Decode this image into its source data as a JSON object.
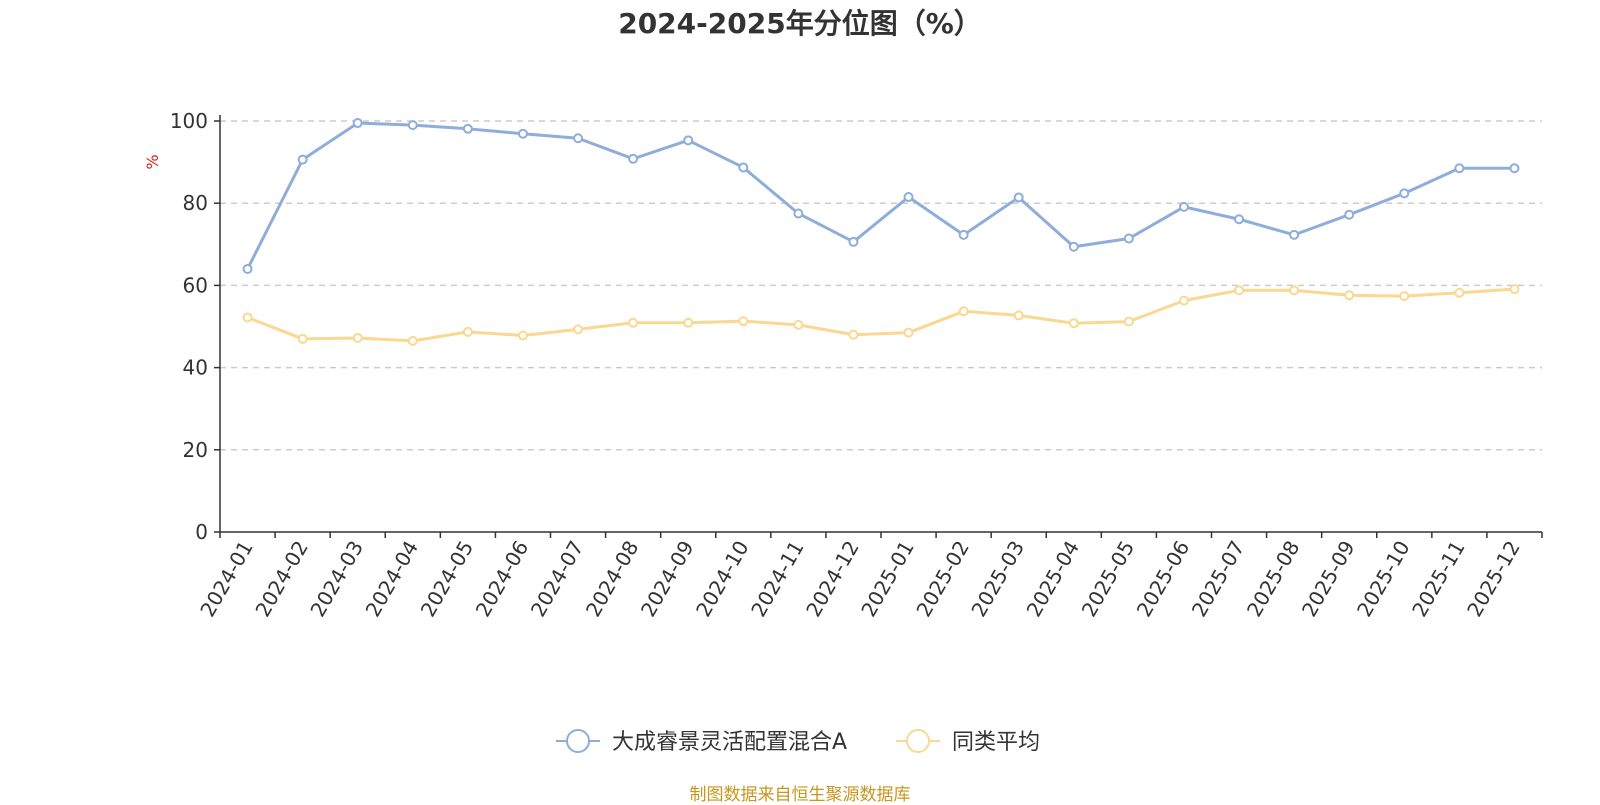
{
  "chart_data": {
    "type": "line",
    "title": "2024-2025年分位图（%）",
    "ylabel": "%",
    "xlabel": "",
    "ylim": [
      0,
      100
    ],
    "yticks": [
      0,
      20,
      40,
      60,
      80,
      100
    ],
    "grid": "horizontal dashed",
    "legend_position": "bottom",
    "categories": [
      "2024-01",
      "2024-02",
      "2024-03",
      "2024-04",
      "2024-05",
      "2024-06",
      "2024-07",
      "2024-08",
      "2024-09",
      "2024-10",
      "2024-11",
      "2024-12",
      "2025-01",
      "2025-02",
      "2025-03",
      "2025-04",
      "2025-05",
      "2025-06",
      "2025-07",
      "2025-08",
      "2025-09",
      "2025-10",
      "2025-11",
      "2025-12"
    ],
    "series": [
      {
        "name": "大成睿景灵活配置混合A",
        "color": "#8eaddb",
        "values": [
          64.0,
          90.6,
          99.5,
          99.0,
          98.1,
          96.9,
          95.8,
          90.8,
          95.3,
          88.7,
          77.5,
          70.6,
          81.5,
          72.3,
          81.4,
          69.4,
          71.4,
          79.1,
          76.1,
          72.3,
          77.2,
          82.4,
          88.5,
          88.5
        ]
      },
      {
        "name": "同类平均",
        "color": "#fbd891",
        "values": [
          52.2,
          47.0,
          47.2,
          46.5,
          48.7,
          47.8,
          49.3,
          50.9,
          50.9,
          51.3,
          50.4,
          48.0,
          48.5,
          53.7,
          52.7,
          50.8,
          51.2,
          56.3,
          58.8,
          58.8,
          57.6,
          57.4,
          58.2,
          59.1
        ]
      }
    ],
    "source_note": "制图数据来自恒生聚源数据库"
  }
}
